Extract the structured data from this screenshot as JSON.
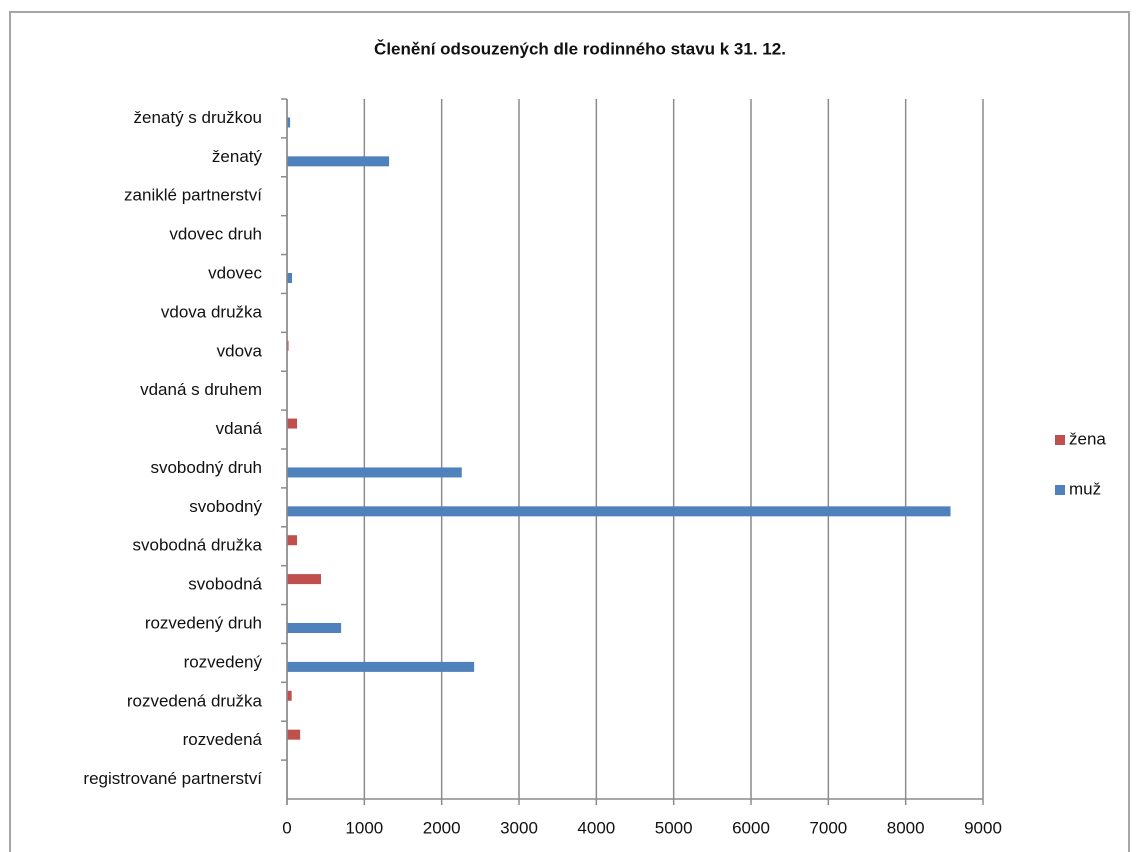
{
  "chart_data": {
    "type": "bar",
    "orientation": "horizontal",
    "title": "Členění odsouzených dle rodinného stavu k 31. 12.",
    "categories": [
      "ženatý s družkou",
      "ženatý",
      "zaniklé partnerství",
      "vdovec druh",
      "vdovec",
      "vdova družka",
      "vdova",
      "vdaná s druhem",
      "vdaná",
      "svobodný druh",
      "svobodný",
      "svobodná družka",
      "svobodná",
      "rozvedený druh",
      "rozvedený",
      "rozvedená družka",
      "rozvedená",
      "registrované partnerství"
    ],
    "series": [
      {
        "name": "žena",
        "color": "#c0504d",
        "values": [
          0,
          0,
          0,
          0,
          0,
          0,
          20,
          0,
          130,
          0,
          0,
          130,
          440,
          0,
          0,
          60,
          170,
          0
        ]
      },
      {
        "name": "muž",
        "color": "#4f81bd",
        "values": [
          40,
          1320,
          0,
          0,
          65,
          0,
          0,
          0,
          0,
          2260,
          8580,
          0,
          0,
          700,
          2420,
          0,
          0,
          0
        ]
      }
    ],
    "xlim": [
      0,
      9000
    ],
    "xticks": [
      0,
      1000,
      2000,
      3000,
      4000,
      5000,
      6000,
      7000,
      8000,
      9000
    ],
    "grid": true,
    "legend": "right"
  }
}
